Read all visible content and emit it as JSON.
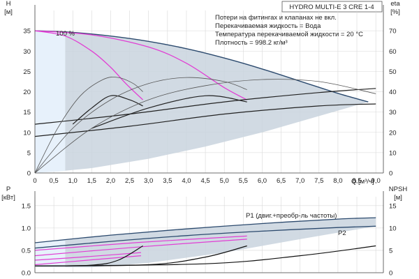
{
  "chart_data": [
    {
      "type": "line",
      "title": "HYDRO MULTI-E 3 CRE 1-4",
      "xlabel": "Q [м³/ч]",
      "ylabel_left": [
        "H",
        "[м]"
      ],
      "ylabel_right": [
        "eta",
        "[%]"
      ],
      "xlim": [
        0,
        9.2
      ],
      "ylim_left": [
        0,
        40
      ],
      "ylim_right": [
        0,
        80
      ],
      "x_ticks": [
        "0",
        "0,5",
        "1,0",
        "1,5",
        "2,0",
        "2,5",
        "3,0",
        "3,5",
        "4,0",
        "4,5",
        "5,0",
        "5,5",
        "6,0",
        "6,5",
        "7,0",
        "7,5",
        "8,0",
        "8,5",
        "9,0"
      ],
      "y_ticks_left": [
        "0",
        "5",
        "10",
        "15",
        "20",
        "25",
        "30",
        "35"
      ],
      "y_ticks_right": [
        "0",
        "10",
        "20",
        "30",
        "40",
        "50",
        "60",
        "70"
      ],
      "grid": true,
      "legend_lines": [
        "Потери на фитингах и клапанах не вкл.",
        "Перекачиваемая жидкость = Вода",
        "Температура перекачиваемой жидкости = 20 °C",
        "Плотность = 998.2 кг/м³"
      ],
      "annotation": "100 %",
      "series": [
        {
          "role": "head-max",
          "x": [
            0,
            1,
            2,
            3,
            4,
            5,
            6,
            7,
            8,
            8.8
          ],
          "y": [
            35,
            34.6,
            33.7,
            32.4,
            30.6,
            28.3,
            25.6,
            22.6,
            19.6,
            17.5
          ]
        },
        {
          "role": "head-pink-1",
          "x": [
            0,
            0.8,
            1.5,
            2.0,
            2.4,
            2.85
          ],
          "y": [
            35,
            33.7,
            30.0,
            26.0,
            22.0,
            18.0
          ]
        },
        {
          "role": "head-pink-2",
          "x": [
            0,
            1.5,
            3.0,
            4.0,
            5.0,
            5.6
          ],
          "y": [
            35,
            34.0,
            31.0,
            27.0,
            21.0,
            18.0
          ]
        },
        {
          "role": "head-mid",
          "x": [
            0,
            2.5,
            5.0,
            7.5,
            9.0
          ],
          "y": [
            12,
            14.5,
            17.5,
            19.8,
            20.8
          ]
        },
        {
          "role": "head-low",
          "x": [
            0,
            2.5,
            5.0,
            7.5,
            9.0
          ],
          "y": [
            9,
            11.5,
            14.5,
            16.5,
            17.0
          ]
        },
        {
          "role": "head-small-1",
          "x": [
            1.0,
            1.5,
            2.0,
            2.5,
            2.85
          ],
          "y": [
            12,
            16,
            19,
            18,
            16.5
          ]
        },
        {
          "role": "head-small-2",
          "x": [
            1.5,
            3.0,
            4.5,
            5.6
          ],
          "y": [
            11,
            16,
            19,
            17.5
          ]
        },
        {
          "role": "eta-1",
          "x": [
            0,
            0.6,
            1.2,
            1.8,
            2.2,
            2.6,
            2.85
          ],
          "y": [
            0,
            22,
            38,
            46,
            47,
            44,
            40
          ]
        },
        {
          "role": "eta-2",
          "x": [
            0,
            1.0,
            2.0,
            3.0,
            4.0,
            5.0,
            5.6
          ],
          "y": [
            0,
            22,
            36,
            44,
            47,
            45,
            41
          ]
        },
        {
          "role": "eta-3",
          "x": [
            0,
            1.5,
            3.0,
            4.5,
            6.0,
            7.5,
            9.0
          ],
          "y": [
            0,
            22,
            36,
            43,
            46,
            45,
            39
          ]
        }
      ]
    },
    {
      "type": "line",
      "xlabel": "",
      "ylabel_left": [
        "P",
        "[кВт]"
      ],
      "ylabel_right": [
        "NPSH",
        "[м]"
      ],
      "xlim": [
        0,
        9.2
      ],
      "ylim_left": [
        0,
        1.7
      ],
      "ylim_right": [
        0,
        17
      ],
      "y_ticks_left": [
        "0.0",
        "0.5",
        "1.0",
        "1.5"
      ],
      "y_ticks_right": [
        "0",
        "5",
        "10",
        "15"
      ],
      "grid": true,
      "series": [
        {
          "name": "P1 (двиг.+преобр-ль частоты)",
          "x": [
            0,
            2,
            4,
            6,
            8,
            9.0
          ],
          "y": [
            0.67,
            0.84,
            0.98,
            1.1,
            1.2,
            1.23
          ]
        },
        {
          "name": "P2",
          "x": [
            0,
            2,
            4,
            6,
            8,
            9.0
          ],
          "y": [
            0.55,
            0.7,
            0.83,
            0.93,
            1.01,
            1.04
          ]
        },
        {
          "role": "p-pink-1",
          "x": [
            0,
            1.4,
            2.8
          ],
          "y": [
            0.18,
            0.28,
            0.38
          ]
        },
        {
          "role": "p-pink-2",
          "x": [
            0,
            1.4,
            2.8
          ],
          "y": [
            0.28,
            0.36,
            0.45
          ]
        },
        {
          "role": "p-pink-3",
          "x": [
            0,
            2.8,
            5.6
          ],
          "y": [
            0.38,
            0.58,
            0.75
          ]
        },
        {
          "role": "p-pink-4",
          "x": [
            0,
            2.8,
            5.6
          ],
          "y": [
            0.5,
            0.68,
            0.82
          ]
        },
        {
          "role": "npsh-1",
          "x": [
            0,
            1.5,
            2.2,
            2.85
          ],
          "y": [
            1.5,
            1.7,
            2.8,
            6.0
          ]
        },
        {
          "role": "npsh-2",
          "x": [
            0,
            3.0,
            4.5,
            5.6
          ],
          "y": [
            1.5,
            1.8,
            3.5,
            6.0
          ]
        },
        {
          "role": "npsh-3",
          "x": [
            0,
            4.5,
            7.0,
            9.0
          ],
          "y": [
            1.5,
            2.0,
            3.8,
            6.0
          ]
        }
      ]
    }
  ]
}
